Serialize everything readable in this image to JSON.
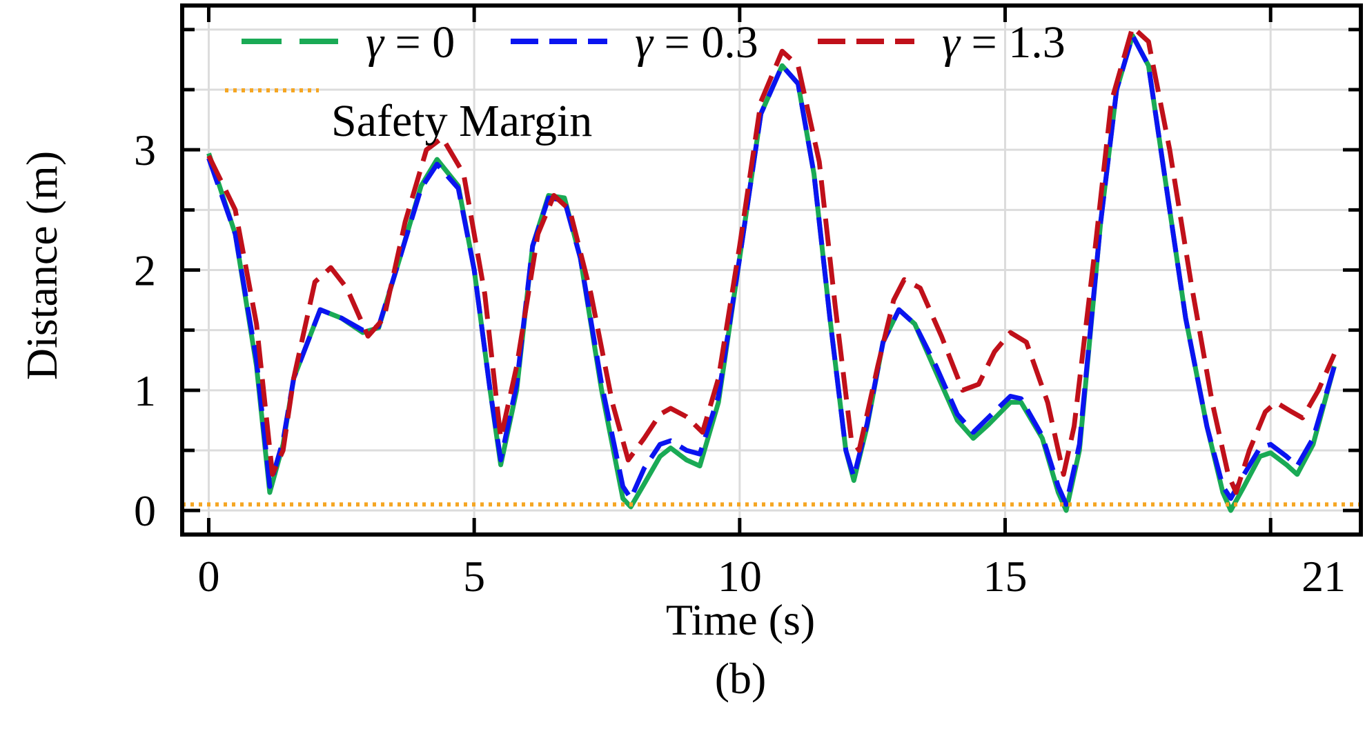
{
  "chart_data": {
    "type": "line",
    "xlabel": "Time (s)",
    "ylabel": "Distance (m)",
    "caption": "(b)",
    "xlim": [
      -0.5,
      21.7
    ],
    "ylim": [
      -0.2,
      4.2
    ],
    "xticks": [
      0,
      5,
      10,
      15,
      21
    ],
    "xtick_labels": [
      "0",
      "5",
      "10",
      "15",
      "21"
    ],
    "xgrid": [
      0,
      5,
      10,
      15,
      20
    ],
    "yticks": [
      0,
      1,
      2,
      3
    ],
    "ytick_labels": [
      "0",
      "1",
      "2",
      "3"
    ],
    "ygrid": [
      0,
      0.5,
      1,
      1.5,
      2,
      2.5,
      3,
      3.5,
      4
    ],
    "grid": true,
    "legend_position": "top",
    "series": [
      {
        "name": "γ = 0",
        "legend_symbol": "γ",
        "legend_value": "= 0",
        "color": "#1aaa55",
        "style": "solid",
        "points": [
          [
            0,
            2.97
          ],
          [
            0.5,
            2.3
          ],
          [
            0.9,
            1.2
          ],
          [
            1.15,
            0.15
          ],
          [
            1.4,
            0.55
          ],
          [
            1.6,
            1.1
          ],
          [
            2.1,
            1.67
          ],
          [
            2.5,
            1.6
          ],
          [
            2.9,
            1.48
          ],
          [
            3.2,
            1.52
          ],
          [
            3.6,
            2.1
          ],
          [
            4.0,
            2.7
          ],
          [
            4.3,
            2.92
          ],
          [
            4.7,
            2.7
          ],
          [
            5.0,
            2.0
          ],
          [
            5.3,
            1.0
          ],
          [
            5.5,
            0.38
          ],
          [
            5.8,
            1.0
          ],
          [
            6.1,
            2.2
          ],
          [
            6.4,
            2.62
          ],
          [
            6.7,
            2.6
          ],
          [
            7.0,
            2.1
          ],
          [
            7.4,
            1.0
          ],
          [
            7.8,
            0.1
          ],
          [
            7.95,
            0.03
          ],
          [
            8.2,
            0.22
          ],
          [
            8.5,
            0.45
          ],
          [
            8.7,
            0.52
          ],
          [
            9.0,
            0.42
          ],
          [
            9.25,
            0.37
          ],
          [
            9.6,
            0.9
          ],
          [
            10.0,
            2.1
          ],
          [
            10.4,
            3.3
          ],
          [
            10.8,
            3.7
          ],
          [
            11.1,
            3.55
          ],
          [
            11.4,
            2.8
          ],
          [
            11.7,
            1.6
          ],
          [
            12.0,
            0.5
          ],
          [
            12.15,
            0.25
          ],
          [
            12.4,
            0.7
          ],
          [
            12.7,
            1.4
          ],
          [
            13.0,
            1.67
          ],
          [
            13.3,
            1.55
          ],
          [
            13.7,
            1.15
          ],
          [
            14.1,
            0.75
          ],
          [
            14.4,
            0.6
          ],
          [
            14.7,
            0.72
          ],
          [
            15.1,
            0.9
          ],
          [
            15.3,
            0.9
          ],
          [
            15.7,
            0.6
          ],
          [
            16.0,
            0.15
          ],
          [
            16.15,
            0.0
          ],
          [
            16.4,
            0.5
          ],
          [
            16.8,
            2.4
          ],
          [
            17.1,
            3.5
          ],
          [
            17.4,
            3.95
          ],
          [
            17.7,
            3.7
          ],
          [
            18.0,
            2.8
          ],
          [
            18.4,
            1.6
          ],
          [
            18.8,
            0.7
          ],
          [
            19.1,
            0.15
          ],
          [
            19.25,
            0.0
          ],
          [
            19.5,
            0.2
          ],
          [
            19.8,
            0.45
          ],
          [
            20.0,
            0.48
          ],
          [
            20.3,
            0.38
          ],
          [
            20.5,
            0.3
          ],
          [
            20.8,
            0.55
          ],
          [
            21.2,
            1.2
          ]
        ]
      },
      {
        "name": "γ = 0.3",
        "legend_symbol": "γ",
        "legend_value": "= 0.3",
        "color": "#0a14f0",
        "style": "dashed",
        "points": [
          [
            0,
            2.93
          ],
          [
            0.5,
            2.3
          ],
          [
            0.9,
            1.25
          ],
          [
            1.15,
            0.2
          ],
          [
            1.4,
            0.58
          ],
          [
            1.6,
            1.1
          ],
          [
            2.1,
            1.67
          ],
          [
            2.5,
            1.6
          ],
          [
            2.9,
            1.5
          ],
          [
            3.2,
            1.53
          ],
          [
            3.6,
            2.1
          ],
          [
            4.0,
            2.68
          ],
          [
            4.3,
            2.88
          ],
          [
            4.7,
            2.68
          ],
          [
            5.0,
            2.0
          ],
          [
            5.3,
            1.0
          ],
          [
            5.5,
            0.42
          ],
          [
            5.8,
            1.05
          ],
          [
            6.1,
            2.2
          ],
          [
            6.4,
            2.6
          ],
          [
            6.7,
            2.58
          ],
          [
            7.0,
            2.1
          ],
          [
            7.4,
            1.05
          ],
          [
            7.8,
            0.2
          ],
          [
            7.95,
            0.1
          ],
          [
            8.2,
            0.35
          ],
          [
            8.5,
            0.55
          ],
          [
            8.7,
            0.58
          ],
          [
            9.0,
            0.5
          ],
          [
            9.25,
            0.47
          ],
          [
            9.6,
            0.95
          ],
          [
            10.0,
            2.1
          ],
          [
            10.4,
            3.3
          ],
          [
            10.8,
            3.7
          ],
          [
            11.1,
            3.55
          ],
          [
            11.4,
            2.8
          ],
          [
            11.7,
            1.6
          ],
          [
            12.0,
            0.5
          ],
          [
            12.15,
            0.28
          ],
          [
            12.4,
            0.72
          ],
          [
            12.7,
            1.4
          ],
          [
            13.0,
            1.67
          ],
          [
            13.3,
            1.55
          ],
          [
            13.7,
            1.2
          ],
          [
            14.1,
            0.8
          ],
          [
            14.4,
            0.65
          ],
          [
            14.7,
            0.78
          ],
          [
            15.1,
            0.95
          ],
          [
            15.3,
            0.93
          ],
          [
            15.7,
            0.62
          ],
          [
            16.0,
            0.2
          ],
          [
            16.15,
            0.05
          ],
          [
            16.4,
            0.55
          ],
          [
            16.8,
            2.4
          ],
          [
            17.1,
            3.5
          ],
          [
            17.4,
            3.95
          ],
          [
            17.7,
            3.7
          ],
          [
            18.0,
            2.8
          ],
          [
            18.4,
            1.6
          ],
          [
            18.8,
            0.7
          ],
          [
            19.1,
            0.2
          ],
          [
            19.25,
            0.1
          ],
          [
            19.5,
            0.3
          ],
          [
            19.8,
            0.52
          ],
          [
            20.0,
            0.55
          ],
          [
            20.3,
            0.45
          ],
          [
            20.5,
            0.37
          ],
          [
            20.8,
            0.6
          ],
          [
            21.2,
            1.2
          ]
        ]
      },
      {
        "name": "γ = 1.3",
        "legend_symbol": "γ",
        "legend_value": "= 1.3",
        "color": "#c0101a",
        "style": "dashed",
        "points": [
          [
            0,
            2.95
          ],
          [
            0.5,
            2.5
          ],
          [
            0.9,
            1.55
          ],
          [
            1.2,
            0.3
          ],
          [
            1.4,
            0.5
          ],
          [
            1.6,
            1.1
          ],
          [
            2.0,
            1.9
          ],
          [
            2.3,
            2.02
          ],
          [
            2.6,
            1.85
          ],
          [
            3.0,
            1.45
          ],
          [
            3.3,
            1.6
          ],
          [
            3.7,
            2.4
          ],
          [
            4.1,
            3.0
          ],
          [
            4.4,
            3.1
          ],
          [
            4.8,
            2.8
          ],
          [
            5.2,
            1.8
          ],
          [
            5.5,
            0.6
          ],
          [
            5.8,
            1.2
          ],
          [
            6.2,
            2.3
          ],
          [
            6.5,
            2.62
          ],
          [
            6.8,
            2.5
          ],
          [
            7.2,
            1.8
          ],
          [
            7.6,
            0.9
          ],
          [
            7.9,
            0.42
          ],
          [
            8.2,
            0.6
          ],
          [
            8.5,
            0.8
          ],
          [
            8.7,
            0.85
          ],
          [
            9.0,
            0.78
          ],
          [
            9.3,
            0.65
          ],
          [
            9.6,
            1.1
          ],
          [
            10.0,
            2.2
          ],
          [
            10.4,
            3.4
          ],
          [
            10.8,
            3.82
          ],
          [
            11.1,
            3.7
          ],
          [
            11.5,
            2.9
          ],
          [
            11.8,
            1.7
          ],
          [
            12.1,
            0.6
          ],
          [
            12.25,
            0.5
          ],
          [
            12.6,
            1.2
          ],
          [
            12.9,
            1.75
          ],
          [
            13.1,
            1.92
          ],
          [
            13.4,
            1.85
          ],
          [
            13.8,
            1.45
          ],
          [
            14.2,
            1.0
          ],
          [
            14.5,
            1.05
          ],
          [
            14.8,
            1.32
          ],
          [
            15.1,
            1.48
          ],
          [
            15.4,
            1.4
          ],
          [
            15.8,
            0.9
          ],
          [
            16.1,
            0.3
          ],
          [
            16.3,
            0.7
          ],
          [
            16.7,
            2.2
          ],
          [
            17.0,
            3.4
          ],
          [
            17.4,
            4.02
          ],
          [
            17.7,
            3.9
          ],
          [
            18.1,
            3.0
          ],
          [
            18.5,
            1.9
          ],
          [
            18.9,
            0.9
          ],
          [
            19.2,
            0.3
          ],
          [
            19.35,
            0.15
          ],
          [
            19.6,
            0.5
          ],
          [
            19.9,
            0.82
          ],
          [
            20.1,
            0.9
          ],
          [
            20.4,
            0.82
          ],
          [
            20.6,
            0.77
          ],
          [
            20.9,
            1.0
          ],
          [
            21.2,
            1.3
          ]
        ]
      },
      {
        "name": "Safety Margin",
        "color": "#f5a623",
        "style": "dotted",
        "points": [
          [
            -0.5,
            0.05
          ],
          [
            21.7,
            0.05
          ]
        ]
      }
    ]
  }
}
